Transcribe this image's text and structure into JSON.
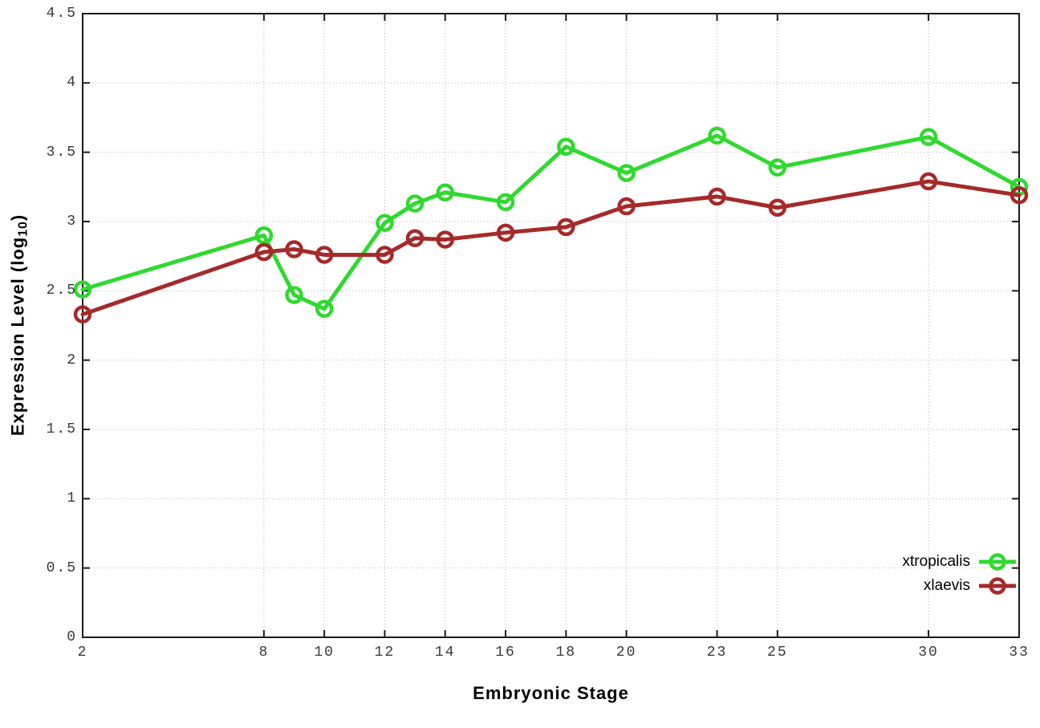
{
  "chart_data": {
    "type": "line",
    "title": "",
    "xlabel": "Embryonic Stage",
    "ylabel": "Expression Level (log10)",
    "ylabel_parts": {
      "prefix": "Expression Level (log",
      "sub": "10",
      "suffix": ")"
    },
    "xlim": [
      2,
      33
    ],
    "ylim": [
      0,
      4.5
    ],
    "grid": true,
    "legend_position": "inside-bottom-right",
    "xticks": {
      "values": [
        2,
        8,
        10,
        12,
        14,
        16,
        18,
        20,
        23,
        25,
        30,
        33
      ],
      "labels": [
        "2",
        "8",
        "10",
        "12",
        "14",
        "16",
        "18",
        "20",
        "23",
        "25",
        "30",
        "33"
      ]
    },
    "yticks": {
      "values": [
        0,
        0.5,
        1,
        1.5,
        2,
        2.5,
        3,
        3.5,
        4,
        4.5
      ],
      "labels": [
        "0",
        "0.5",
        "1",
        "1.5",
        "2",
        "2.5",
        "3",
        "3.5",
        "4",
        "4.5"
      ]
    },
    "x": [
      2,
      8,
      9,
      10,
      12,
      13,
      14,
      16,
      18,
      20,
      23,
      25,
      30,
      33
    ],
    "series": [
      {
        "name": "xtropicalis",
        "color": "#30d930",
        "values": [
          2.51,
          2.9,
          2.47,
          2.37,
          2.99,
          3.13,
          3.21,
          3.14,
          3.54,
          3.35,
          3.62,
          3.39,
          3.61,
          3.25
        ]
      },
      {
        "name": "xlaevis",
        "color": "#a52a2a",
        "values": [
          2.33,
          2.78,
          2.8,
          2.76,
          2.76,
          2.88,
          2.87,
          2.92,
          2.96,
          3.11,
          3.18,
          3.1,
          3.29,
          3.19
        ]
      }
    ],
    "style": {
      "border_color": "#1a1a1a",
      "grid_color": "#b3b3b3",
      "tick_label_color": "#383838"
    }
  }
}
